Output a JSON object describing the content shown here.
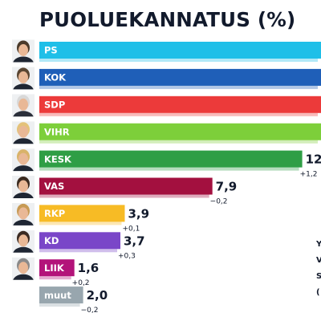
{
  "title": "PUOLUEKANNATUS (%)",
  "chart_data": {
    "type": "bar",
    "orientation": "horizontal",
    "title": "PUOLUEKANNATUS (%)",
    "categories": [
      "PS",
      "KOK",
      "SDP",
      "VIHR",
      "KESK",
      "VAS",
      "RKP",
      "KD",
      "LIIK",
      "muut"
    ],
    "values": [
      null,
      null,
      null,
      null,
      12,
      7.9,
      3.9,
      3.7,
      1.6,
      2.0
    ],
    "value_labels": [
      "",
      "",
      "",
      "",
      "12",
      "7,9",
      "3,9",
      "3,7",
      "1,6",
      "2,0"
    ],
    "changes": [
      "",
      "",
      "",
      "",
      "+1,2",
      "−0,2",
      "+0,1",
      "+0,3",
      "+0,2",
      "−0,2"
    ],
    "colors": [
      "#1fbfe8",
      "#1f5fb8",
      "#ec3a3a",
      "#7dcf3a",
      "#2f9e45",
      "#a3103f",
      "#f7bb25",
      "#7a46c8",
      "#b3137a",
      "#98a6ae"
    ],
    "has_photo": [
      true,
      true,
      true,
      true,
      true,
      true,
      true,
      true,
      true,
      false
    ],
    "side_text": [
      "Y",
      "V",
      "S",
      "("
    ]
  }
}
